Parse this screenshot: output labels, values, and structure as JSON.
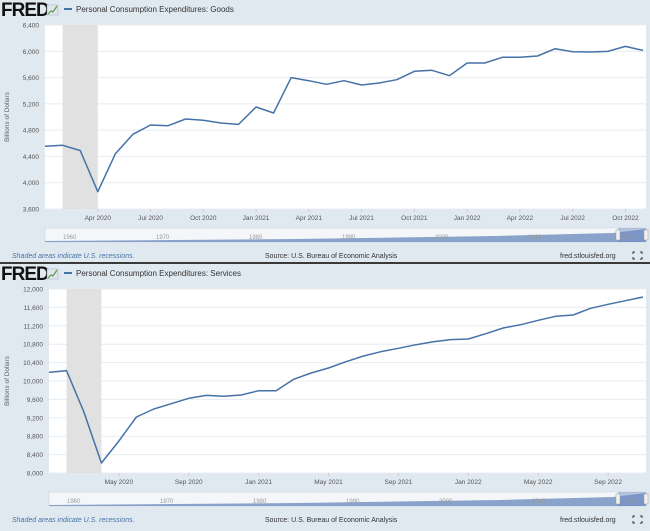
{
  "logo": "FRED",
  "colors": {
    "line": "#4572a7",
    "background": "#e1e9f0",
    "plot": "#ffffff",
    "recession": "#e1e1e1",
    "navigator": "#6f8fbf"
  },
  "chart_data": [
    {
      "type": "line",
      "title": "Personal Consumption Expenditures: Goods",
      "ylabel": "Billions of Dollars",
      "xlabel": "",
      "ylim": [
        3600,
        6400
      ],
      "yticks": [
        "6,400",
        "6,000",
        "5,600",
        "5,200",
        "4,800",
        "4,400",
        "4,000",
        "3,600"
      ],
      "xticks": [
        "Apr 2020",
        "Jul 2020",
        "Oct 2020",
        "Jan 2021",
        "Apr 2021",
        "Jul 2021",
        "Oct 2021",
        "Jan 2022",
        "Apr 2022",
        "Jul 2022",
        "Oct 2022"
      ],
      "grid": true,
      "recession": [
        "2020-02",
        "2020-04"
      ],
      "series": [
        {
          "x": [
            "2020-01",
            "2020-02",
            "2020-03",
            "2020-04",
            "2020-05",
            "2020-06",
            "2020-07",
            "2020-08",
            "2020-09",
            "2020-10",
            "2020-11",
            "2020-12",
            "2021-01",
            "2021-02",
            "2021-03",
            "2021-04",
            "2021-05",
            "2021-06",
            "2021-07",
            "2021-08",
            "2021-09",
            "2021-10",
            "2021-11",
            "2021-12",
            "2022-01",
            "2022-02",
            "2022-03",
            "2022-04",
            "2022-05",
            "2022-06",
            "2022-07",
            "2022-08",
            "2022-09",
            "2022-10",
            "2022-11"
          ],
          "values": [
            4554,
            4570,
            4490,
            3864,
            4442,
            4736,
            4878,
            4868,
            4970,
            4950,
            4909,
            4888,
            5152,
            5061,
            5599,
            5553,
            5497,
            5553,
            5487,
            5517,
            5568,
            5695,
            5710,
            5629,
            5822,
            5822,
            5908,
            5908,
            5928,
            6040,
            5994,
            5989,
            5999,
            6075,
            6014
          ]
        }
      ],
      "navigator_labels": [
        "1960",
        "1970",
        "1980",
        "1990",
        "2000",
        "2010",
        "2020"
      ],
      "footer": {
        "note": "Shaded areas indicate U.S. recessions.",
        "source": "Source: U.S. Bureau of Economic Analysis",
        "site": "fred.stlouisfed.org"
      }
    },
    {
      "type": "line",
      "title": "Personal Consumption Expenditures: Services",
      "ylabel": "Billions of Dollars",
      "xlabel": "",
      "ylim": [
        8000,
        12000
      ],
      "yticks": [
        "12,000",
        "11,600",
        "11,200",
        "10,800",
        "10,400",
        "10,000",
        "9,600",
        "9,200",
        "8,800",
        "8,400",
        "8,000"
      ],
      "xticks": [
        "May 2020",
        "Sep 2020",
        "Jan 2021",
        "May 2021",
        "Sep 2021",
        "Jan 2022",
        "May 2022",
        "Sep 2022"
      ],
      "grid": true,
      "recession": [
        "2020-02",
        "2020-04"
      ],
      "series": [
        {
          "x": [
            "2020-01",
            "2020-02",
            "2020-03",
            "2020-04",
            "2020-05",
            "2020-06",
            "2020-07",
            "2020-08",
            "2020-09",
            "2020-10",
            "2020-11",
            "2020-12",
            "2021-01",
            "2021-02",
            "2021-03",
            "2021-04",
            "2021-05",
            "2021-06",
            "2021-07",
            "2021-08",
            "2021-09",
            "2021-10",
            "2021-11",
            "2021-12",
            "2022-01",
            "2022-02",
            "2022-03",
            "2022-04",
            "2022-05",
            "2022-06",
            "2022-07",
            "2022-08",
            "2022-09",
            "2022-10",
            "2022-11"
          ],
          "values": [
            10188,
            10225,
            9326,
            8217,
            8696,
            9217,
            9391,
            9507,
            9623,
            9688,
            9667,
            9696,
            9790,
            9790,
            10036,
            10174,
            10283,
            10420,
            10543,
            10638,
            10710,
            10790,
            10855,
            10899,
            10913,
            11029,
            11152,
            11225,
            11319,
            11406,
            11435,
            11580,
            11667,
            11746,
            11826
          ]
        }
      ],
      "navigator_labels": [
        "1960",
        "1970",
        "1980",
        "1990",
        "2000",
        "2010",
        "2020"
      ],
      "footer": {
        "note": "Shaded areas indicate U.S. recessions.",
        "source": "Source: U.S. Bureau of Economic Analysis",
        "site": "fred.stlouisfed.org"
      }
    }
  ]
}
